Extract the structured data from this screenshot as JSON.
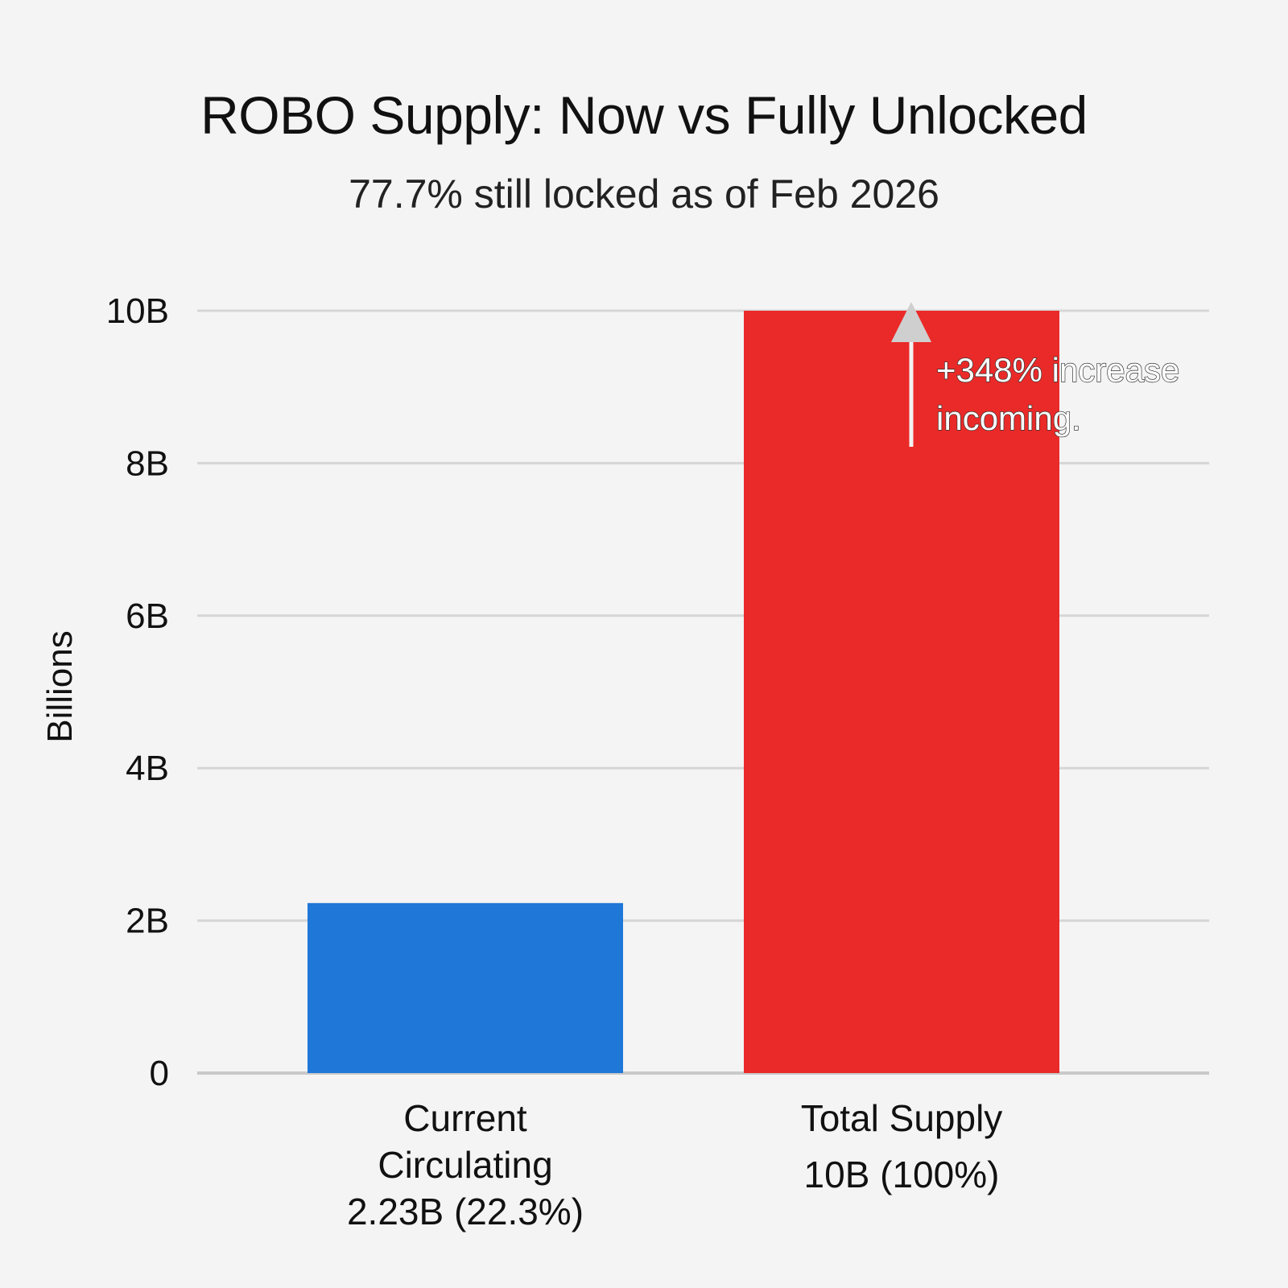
{
  "chart_data": {
    "type": "bar",
    "title": "ROBO Supply: Now vs Fully Unlocked",
    "subtitle": "77.7% still locked as of Feb 2026",
    "ylabel": "Billions",
    "ylim": [
      0,
      10
    ],
    "yticks": [
      {
        "value": 0,
        "label": "0"
      },
      {
        "value": 2,
        "label": "2B"
      },
      {
        "value": 4,
        "label": "4B"
      },
      {
        "value": 6,
        "label": "6B"
      },
      {
        "value": 8,
        "label": "8B"
      },
      {
        "value": 10,
        "label": "10B"
      }
    ],
    "grid": true,
    "bars": [
      {
        "category": [
          "Current",
          "Circulating"
        ],
        "value_label": "2.23B (22.3%)",
        "value": 2.23,
        "color": "#1f77d8"
      },
      {
        "category": [
          "Total Supply"
        ],
        "value_label": "10B (100%)",
        "value": 10,
        "color": "#ea2a28"
      }
    ],
    "annotation": {
      "lines": [
        "+348% increase",
        "incoming."
      ],
      "arrow": "up"
    }
  }
}
